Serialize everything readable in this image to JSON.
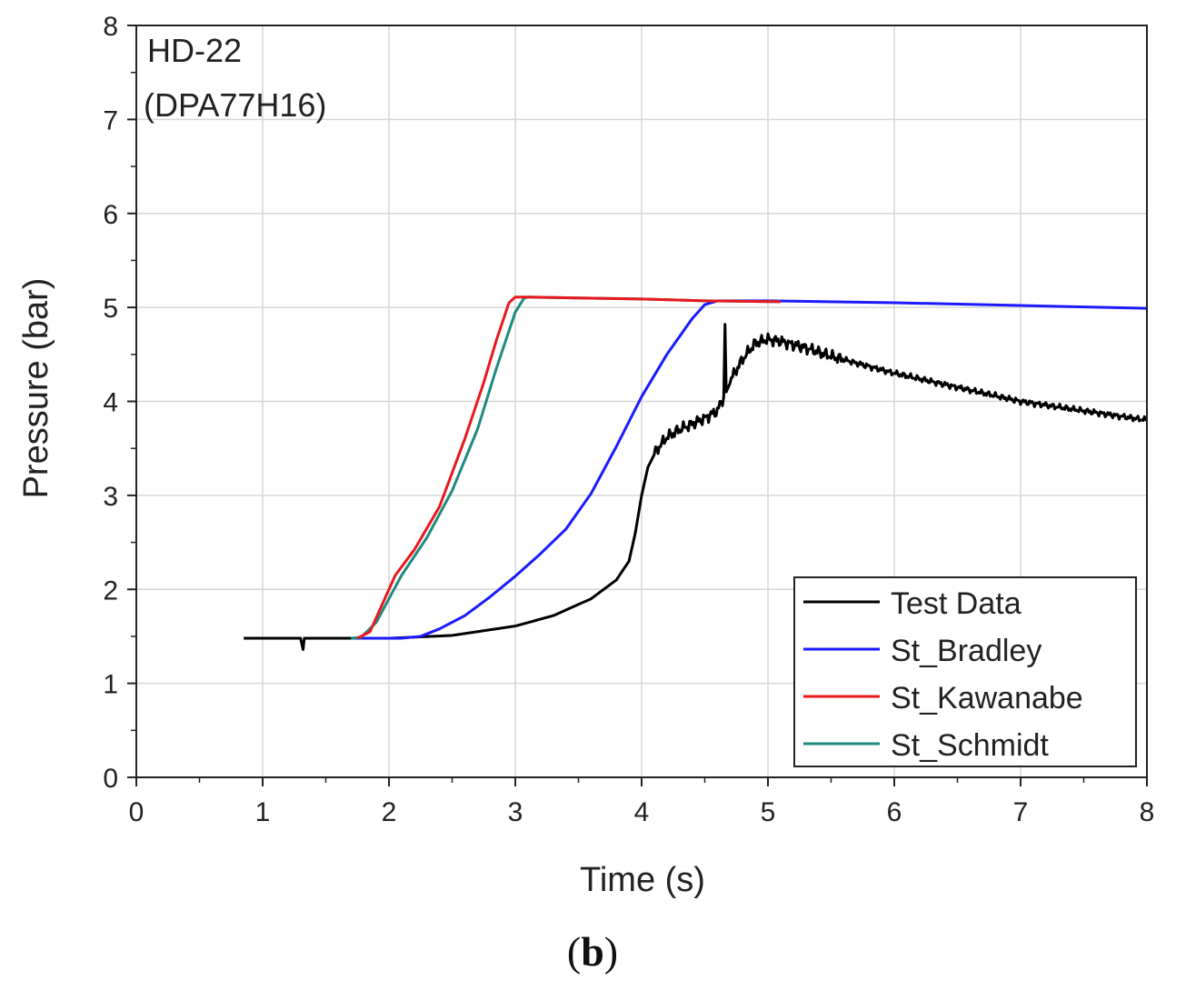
{
  "chart_data": {
    "type": "line",
    "annotation": [
      "HD-22",
      "(DPA77H16)"
    ],
    "xlabel": "Time (s)",
    "ylabel": "Pressure (bar)",
    "xlim": [
      0,
      8
    ],
    "ylim": [
      0,
      8
    ],
    "xticks": [
      0,
      1,
      2,
      3,
      4,
      5,
      6,
      7,
      8
    ],
    "yticks": [
      0,
      1,
      2,
      3,
      4,
      5,
      6,
      7,
      8
    ],
    "grid": true,
    "legend_position": "bottom-right",
    "series": [
      {
        "name": "Test Data",
        "color": "#000000",
        "noisy_from_x": 4.05,
        "points": [
          [
            0.85,
            1.48
          ],
          [
            1.3,
            1.48
          ],
          [
            1.32,
            1.36
          ],
          [
            1.33,
            1.48
          ],
          [
            2.0,
            1.48
          ],
          [
            2.5,
            1.51
          ],
          [
            3.0,
            1.61
          ],
          [
            3.3,
            1.72
          ],
          [
            3.6,
            1.9
          ],
          [
            3.8,
            2.1
          ],
          [
            3.9,
            2.3
          ],
          [
            3.95,
            2.6
          ],
          [
            4.0,
            3.0
          ],
          [
            4.05,
            3.3
          ],
          [
            4.1,
            3.45
          ],
          [
            4.2,
            3.62
          ],
          [
            4.3,
            3.7
          ],
          [
            4.4,
            3.76
          ],
          [
            4.5,
            3.82
          ],
          [
            4.6,
            3.9
          ],
          [
            4.65,
            4.05
          ],
          [
            4.66,
            4.82
          ],
          [
            4.67,
            4.1
          ],
          [
            4.7,
            4.22
          ],
          [
            4.8,
            4.45
          ],
          [
            4.9,
            4.62
          ],
          [
            5.0,
            4.66
          ],
          [
            5.1,
            4.64
          ],
          [
            5.3,
            4.57
          ],
          [
            5.5,
            4.48
          ],
          [
            6.0,
            4.3
          ],
          [
            6.5,
            4.15
          ],
          [
            7.0,
            4.0
          ],
          [
            7.5,
            3.9
          ],
          [
            8.0,
            3.8
          ]
        ]
      },
      {
        "name": "St_Bradley",
        "color": "#1a1aff",
        "points": [
          [
            1.7,
            1.48
          ],
          [
            2.1,
            1.48
          ],
          [
            2.25,
            1.5
          ],
          [
            2.4,
            1.58
          ],
          [
            2.6,
            1.72
          ],
          [
            2.8,
            1.92
          ],
          [
            3.0,
            2.14
          ],
          [
            3.2,
            2.38
          ],
          [
            3.4,
            2.64
          ],
          [
            3.6,
            3.02
          ],
          [
            3.8,
            3.52
          ],
          [
            4.0,
            4.05
          ],
          [
            4.2,
            4.5
          ],
          [
            4.4,
            4.88
          ],
          [
            4.5,
            5.03
          ],
          [
            4.6,
            5.07
          ],
          [
            5.0,
            5.07
          ],
          [
            6.0,
            5.05
          ],
          [
            7.0,
            5.02
          ],
          [
            8.0,
            4.99
          ]
        ]
      },
      {
        "name": "St_Kawanabe",
        "color": "#e8191e",
        "points": [
          [
            1.75,
            1.48
          ],
          [
            1.85,
            1.55
          ],
          [
            1.95,
            1.85
          ],
          [
            2.05,
            2.15
          ],
          [
            2.2,
            2.42
          ],
          [
            2.4,
            2.88
          ],
          [
            2.6,
            3.6
          ],
          [
            2.75,
            4.2
          ],
          [
            2.85,
            4.65
          ],
          [
            2.95,
            5.05
          ],
          [
            3.0,
            5.11
          ],
          [
            3.1,
            5.11
          ],
          [
            3.5,
            5.1
          ],
          [
            4.0,
            5.09
          ],
          [
            4.5,
            5.07
          ],
          [
            5.1,
            5.06
          ]
        ]
      },
      {
        "name": "St_Schmidt",
        "color": "#1f8a80",
        "points": [
          [
            1.7,
            1.48
          ],
          [
            1.78,
            1.49
          ],
          [
            1.9,
            1.65
          ],
          [
            2.0,
            1.9
          ],
          [
            2.1,
            2.15
          ],
          [
            2.3,
            2.55
          ],
          [
            2.5,
            3.05
          ],
          [
            2.7,
            3.7
          ],
          [
            2.85,
            4.35
          ],
          [
            3.0,
            4.95
          ],
          [
            3.07,
            5.1
          ],
          [
            3.1,
            5.11
          ],
          [
            3.5,
            5.1
          ],
          [
            4.0,
            5.09
          ],
          [
            4.5,
            5.07
          ],
          [
            5.1,
            5.06
          ]
        ]
      }
    ]
  },
  "caption": {
    "open": "(",
    "letter": "b",
    "close": ")"
  }
}
